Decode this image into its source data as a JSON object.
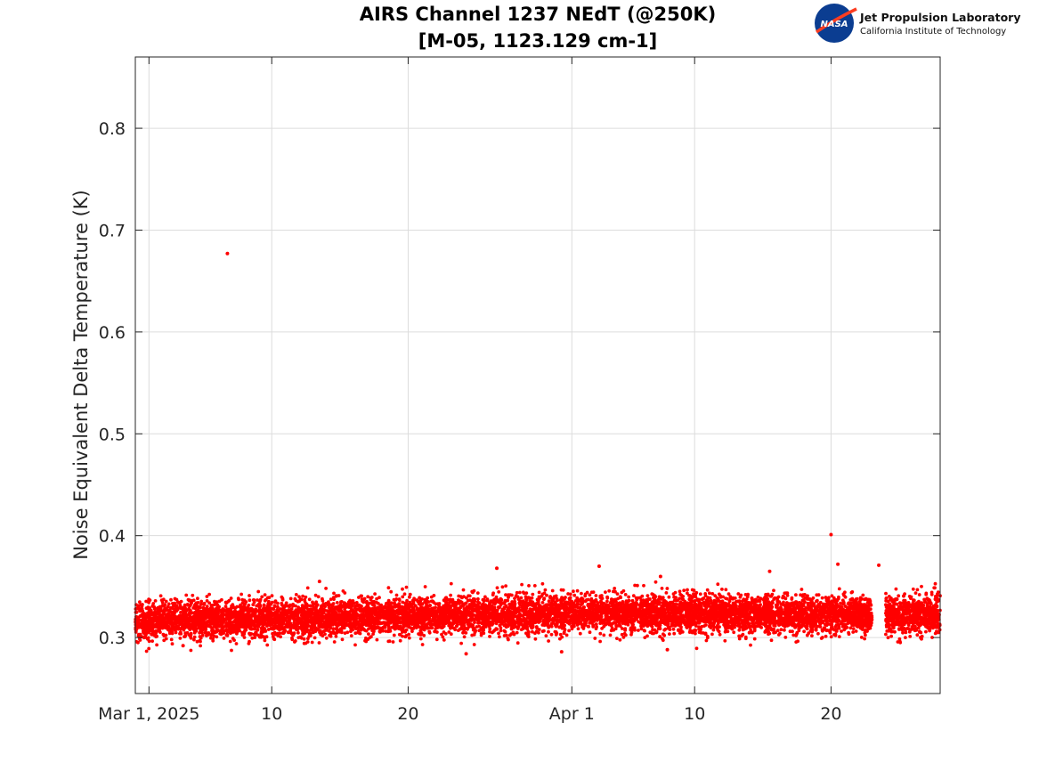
{
  "chart_data": {
    "type": "scatter",
    "title": [
      "AIRS Channel 1237 NEdT (@250K)",
      "[M-05, 1123.129 cm-1]"
    ],
    "xlabel": "",
    "ylabel": "Noise Equivalent Delta Temperature (K)",
    "x_axis_type": "date",
    "xlim": [
      "2025-02-28T00:00",
      "2025-04-28T00:00"
    ],
    "ylim": [
      0.245,
      0.87
    ],
    "x_ticks": [
      {
        "date": "2025-03-01",
        "label": "Mar 1, 2025"
      },
      {
        "date": "2025-03-10",
        "label": "10"
      },
      {
        "date": "2025-03-20",
        "label": "20"
      },
      {
        "date": "2025-04-01",
        "label": "Apr 1"
      },
      {
        "date": "2025-04-10",
        "label": "10"
      },
      {
        "date": "2025-04-20",
        "label": "20"
      }
    ],
    "y_ticks": [
      0.3,
      0.4,
      0.5,
      0.6,
      0.7,
      0.8
    ],
    "grid": true,
    "marker_color": "#ff0000",
    "series": [
      {
        "name": "",
        "x_range": [
          "2025-02-28T00:00",
          "2025-04-28T00:00"
        ],
        "data_gap": [
          "2025-04-23T00:00",
          "2025-04-24T00:00"
        ],
        "baseline_trend": [
          {
            "x": "2025-02-28",
            "y": 0.316
          },
          {
            "x": "2025-03-20",
            "y": 0.321
          },
          {
            "x": "2025-04-01",
            "y": 0.324
          },
          {
            "x": "2025-04-28",
            "y": 0.322
          }
        ],
        "typical_spread": [
          0.297,
          0.345
        ],
        "outliers": [
          {
            "x": "2025-03-06T18:00",
            "y": 0.677
          },
          {
            "x": "2025-04-20T00:00",
            "y": 0.401
          },
          {
            "x": "2025-04-20T12:00",
            "y": 0.372
          },
          {
            "x": "2025-04-23T12:00",
            "y": 0.371
          },
          {
            "x": "2025-04-03T00:00",
            "y": 0.37
          },
          {
            "x": "2025-03-26T12:00",
            "y": 0.368
          },
          {
            "x": "2025-03-24T06:00",
            "y": 0.284
          },
          {
            "x": "2025-03-31T06:00",
            "y": 0.286
          },
          {
            "x": "2025-03-13T12:00",
            "y": 0.355
          },
          {
            "x": "2025-03-03T12:00",
            "y": 0.292
          },
          {
            "x": "2025-04-07T12:00",
            "y": 0.36
          },
          {
            "x": "2025-04-15T12:00",
            "y": 0.365
          },
          {
            "x": "2025-04-08T00:00",
            "y": 0.288
          }
        ]
      }
    ]
  },
  "logo": {
    "badge_text": "NASA",
    "line1": "Jet Propulsion Laboratory",
    "line2": "California Institute of Technology",
    "badge_color": "#0b3d91",
    "accent_color": "#fc3d21"
  }
}
